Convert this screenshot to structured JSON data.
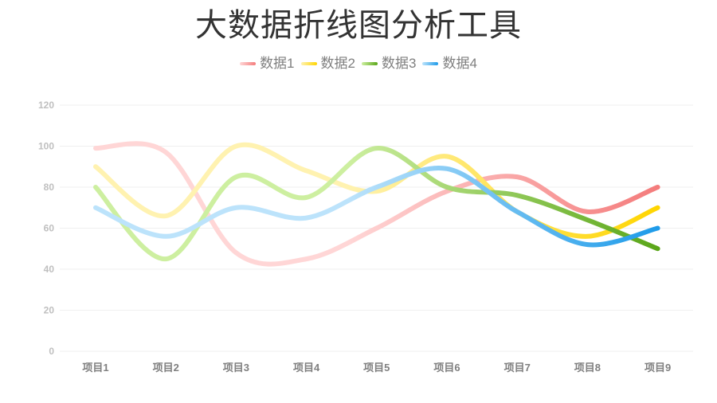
{
  "title": "大数据折线图分析工具",
  "legend": [
    {
      "label": "数据1",
      "color_start": "#FFD6D6",
      "color_end": "#F47C7C"
    },
    {
      "label": "数据2",
      "color_start": "#FFF2B0",
      "color_end": "#FFD500"
    },
    {
      "label": "数据3",
      "color_start": "#CDEFA0",
      "color_end": "#5AA619"
    },
    {
      "label": "数据4",
      "color_start": "#BCE3FB",
      "color_end": "#1E9BE9"
    }
  ],
  "chart_data": {
    "type": "line",
    "title": "大数据折线图分析工具",
    "xlabel": "",
    "ylabel": "",
    "categories": [
      "项目1",
      "项目2",
      "项目3",
      "项目4",
      "项目5",
      "项目6",
      "项目7",
      "项目8",
      "项目9"
    ],
    "series": [
      {
        "name": "数据1",
        "values": [
          99,
          97,
          48,
          45,
          60,
          78,
          85,
          68,
          80
        ]
      },
      {
        "name": "数据2",
        "values": [
          90,
          66,
          100,
          88,
          78,
          95,
          68,
          56,
          70
        ]
      },
      {
        "name": "数据3",
        "values": [
          80,
          45,
          85,
          75,
          99,
          80,
          76,
          64,
          50
        ]
      },
      {
        "name": "数据4",
        "values": [
          70,
          56,
          70,
          65,
          80,
          89,
          68,
          52,
          60
        ]
      }
    ],
    "ylim": [
      0,
      120
    ],
    "yticks": [
      0,
      20,
      40,
      60,
      80,
      100,
      120
    ],
    "grid": true,
    "smooth": true,
    "legend_position": "top"
  }
}
